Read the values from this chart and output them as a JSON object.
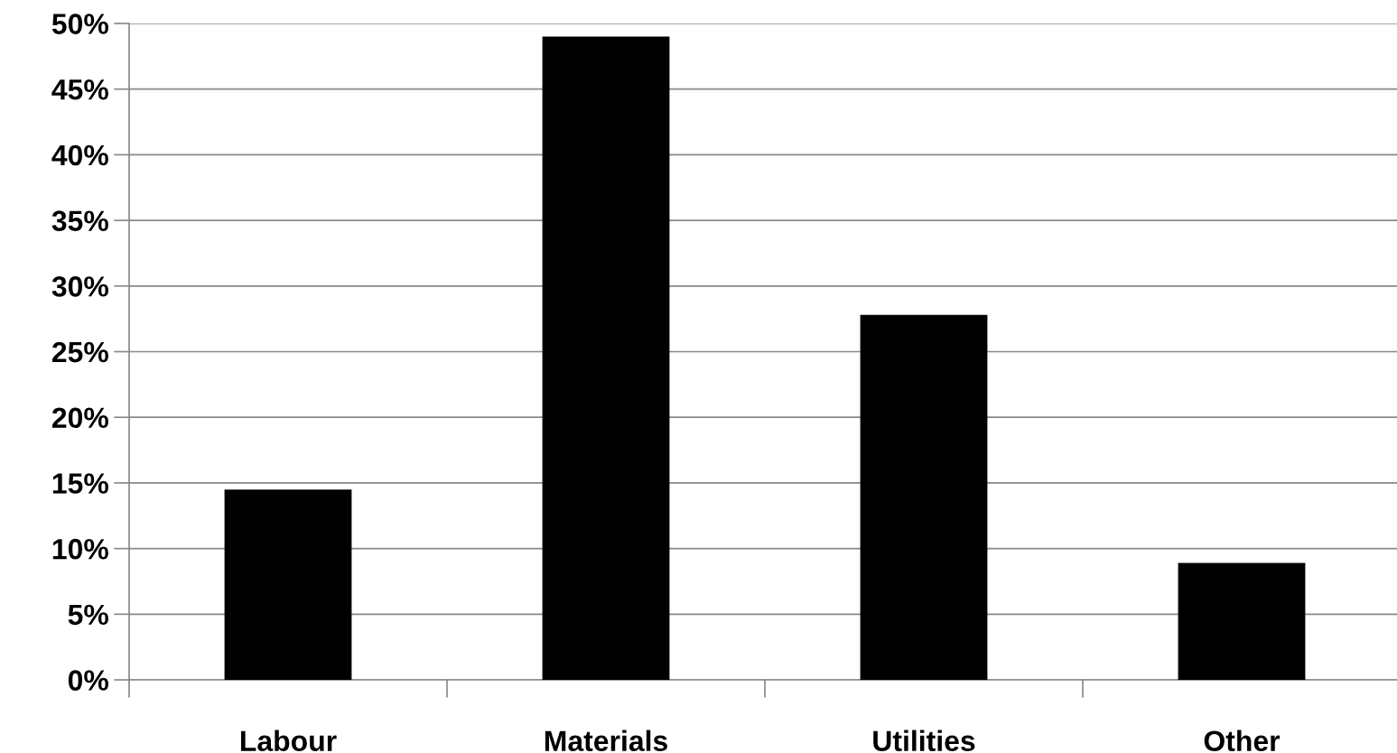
{
  "chart_data": {
    "type": "bar",
    "categories": [
      "Labour",
      "Materials",
      "Utilities",
      "Other"
    ],
    "values": [
      14.5,
      49,
      27.8,
      8.9
    ],
    "color": "#000000",
    "ylim": [
      0,
      50
    ],
    "yticks": [
      {
        "value": 0,
        "label": "0%"
      },
      {
        "value": 5,
        "label": "5%"
      },
      {
        "value": 10,
        "label": "10%"
      },
      {
        "value": 15,
        "label": "15%"
      },
      {
        "value": 20,
        "label": "20%"
      },
      {
        "value": 25,
        "label": "25%"
      },
      {
        "value": 30,
        "label": "30%"
      },
      {
        "value": 35,
        "label": "35%"
      },
      {
        "value": 40,
        "label": "40%"
      },
      {
        "value": 45,
        "label": "45%"
      },
      {
        "value": 50,
        "label": "50%"
      }
    ],
    "grid": "y"
  }
}
